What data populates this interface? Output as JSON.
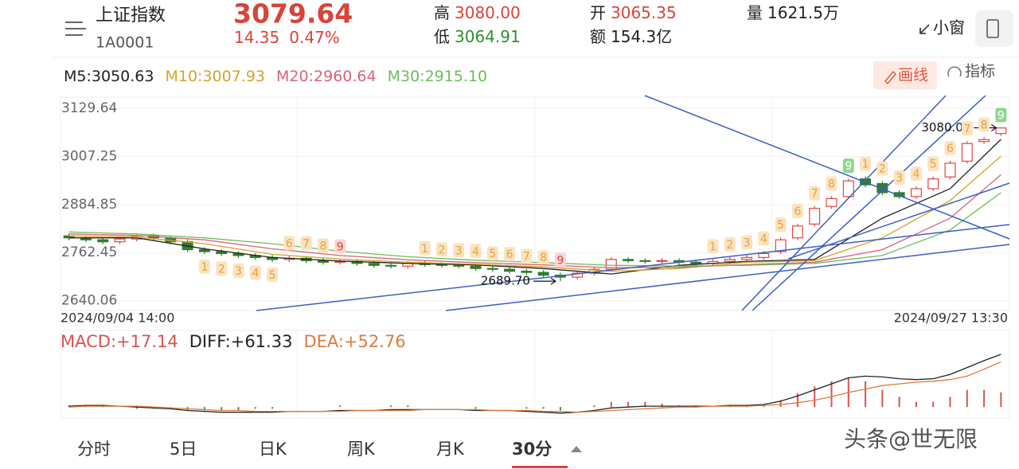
{
  "header": {
    "name": "上证指数",
    "code": "1A0001",
    "price": "3079.64",
    "change": "14.35",
    "change_pct": "0.47%",
    "stats": [
      {
        "label": "高",
        "value": "3080.00"
      },
      {
        "label": "低",
        "value": "3064.91"
      },
      {
        "label": "开",
        "value": "3065.35"
      },
      {
        "label": "额",
        "value": "154.3亿"
      },
      {
        "label": "量",
        "value": "1621.5万"
      }
    ]
  },
  "toolbar": {
    "small_window": "小窗",
    "draw": "画线",
    "indicator": "指标"
  },
  "tabs": [
    "分时",
    "5日",
    "日K",
    "周K",
    "月K",
    "30分"
  ],
  "active_tab": 5,
  "watermark": "头条@世无限",
  "chart_data": [
    {
      "type": "candlestick",
      "up_color": "#e0463e",
      "down_color": "#2f7d32",
      "categories": [
        "2024/09/04 14:00",
        null,
        null,
        null,
        null,
        null,
        null,
        null,
        null,
        null,
        null,
        null,
        null,
        null,
        null,
        null,
        null,
        null,
        null,
        null,
        null,
        null,
        null,
        null,
        null,
        null,
        null,
        null,
        null,
        null,
        null,
        null,
        null,
        null,
        null,
        null,
        null,
        null,
        null,
        null,
        null,
        null,
        null,
        null,
        null,
        null,
        null,
        null,
        null,
        null,
        null,
        null,
        null,
        null,
        null,
        "2024/09/27 13:30"
      ],
      "open": [
        2805,
        2800,
        2795,
        2790,
        2797,
        2805,
        2800,
        2790,
        2770,
        2765,
        2760,
        2755,
        2750,
        2745,
        2748,
        2742,
        2738,
        2740,
        2735,
        2730,
        2728,
        2735,
        2732,
        2730,
        2728,
        2722,
        2720,
        2715,
        2712,
        2705,
        2700,
        2710,
        2720,
        2745,
        2742,
        2740,
        2742,
        2738,
        2735,
        2740,
        2745,
        2750,
        2765,
        2800,
        2835,
        2880,
        2905,
        2950,
        2938,
        2915,
        2905,
        2925,
        2955,
        2995,
        3045,
        3065.35
      ],
      "high": [
        2811,
        2806,
        2801,
        2803,
        2811,
        2811,
        2806,
        2796,
        2776,
        2771,
        2766,
        2761,
        2756,
        2754,
        2754,
        2748,
        2746,
        2746,
        2741,
        2736,
        2741,
        2741,
        2738,
        2736,
        2734,
        2728,
        2726,
        2721,
        2718,
        2711,
        2716,
        2726,
        2751,
        2751,
        2748,
        2748,
        2748,
        2744,
        2746,
        2751,
        2756,
        2766,
        2801,
        2836,
        2881,
        2906,
        2951,
        2956,
        2944,
        2921,
        2931,
        2956,
        2996,
        3046,
        3056,
        3080
      ],
      "low": [
        2794,
        2789,
        2784,
        2784,
        2791,
        2794,
        2784,
        2764,
        2759,
        2754,
        2749,
        2744,
        2739,
        2739,
        2736,
        2732,
        2732,
        2729,
        2724,
        2722,
        2722,
        2726,
        2724,
        2722,
        2716,
        2714,
        2709,
        2706,
        2699,
        2689.7,
        2694,
        2704,
        2714,
        2736,
        2734,
        2734,
        2732,
        2729,
        2729,
        2734,
        2739,
        2744,
        2759,
        2794,
        2829,
        2874,
        2899,
        2929,
        2909,
        2899,
        2899,
        2919,
        2949,
        2989,
        3039,
        3059.35
      ],
      "close": [
        2800,
        2795,
        2790,
        2797,
        2805,
        2800,
        2790,
        2770,
        2765,
        2760,
        2755,
        2750,
        2745,
        2748,
        2742,
        2738,
        2740,
        2735,
        2730,
        2728,
        2735,
        2732,
        2730,
        2728,
        2722,
        2720,
        2715,
        2712,
        2705,
        2700,
        2710,
        2720,
        2745,
        2742,
        2740,
        2742,
        2738,
        2735,
        2740,
        2745,
        2750,
        2760,
        2795,
        2830,
        2875,
        2900,
        2945,
        2935,
        2915,
        2905,
        2925,
        2950,
        2990,
        3040,
        3050,
        3079.64
      ],
      "ylim": [
        2615,
        3158
      ],
      "yticks": [
        3129.64,
        3007.25,
        2884.85,
        2762.45,
        2640.06
      ],
      "grid": true,
      "series": [
        {
          "name": "M5:",
          "color": "#222222",
          "current": 3050.63,
          "x": [
            0,
            4,
            8,
            12,
            16,
            20,
            24,
            28,
            32,
            36,
            40,
            44,
            48,
            52,
            55
          ],
          "values": [
            2800,
            2800,
            2772,
            2750,
            2741,
            2735,
            2731,
            2722,
            2708,
            2730,
            2740,
            2745,
            2850,
            2925,
            3050.63
          ]
        },
        {
          "name": "M10:",
          "color": "#d4a32a",
          "current": 3007.93,
          "x": [
            0,
            4,
            8,
            12,
            16,
            20,
            24,
            28,
            32,
            36,
            40,
            44,
            48,
            52,
            55
          ],
          "values": [
            2805,
            2802,
            2785,
            2758,
            2746,
            2738,
            2733,
            2726,
            2715,
            2722,
            2738,
            2742,
            2800,
            2895,
            3007.93
          ]
        },
        {
          "name": "M20:",
          "color": "#d9637a",
          "current": 2960.64,
          "x": [
            0,
            4,
            8,
            12,
            16,
            20,
            24,
            28,
            32,
            36,
            40,
            44,
            48,
            52,
            55
          ],
          "values": [
            2810,
            2806,
            2795,
            2772,
            2755,
            2744,
            2737,
            2731,
            2724,
            2725,
            2732,
            2738,
            2770,
            2850,
            2960.64
          ]
        },
        {
          "name": "M30:",
          "color": "#6dbd5a",
          "current": 2915.1,
          "current_label": "2915.10",
          "x": [
            0,
            4,
            8,
            12,
            16,
            20,
            24,
            28,
            32,
            36,
            40,
            44,
            48,
            52,
            55
          ],
          "values": [
            2815,
            2810,
            2800,
            2785,
            2766,
            2752,
            2743,
            2737,
            2730,
            2728,
            2730,
            2735,
            2755,
            2820,
            2915.1
          ]
        }
      ],
      "annotations": [
        {
          "label": "3080.00",
          "value": 3080,
          "of": "high"
        },
        {
          "label": "2689.70",
          "value": 2689.7,
          "of": "low"
        }
      ],
      "sequences": [
        {
          "start": 8,
          "side": "below",
          "labels": [
            "1",
            "2",
            "3",
            "4",
            "5"
          ],
          "colors": [
            "#e8a23a",
            "#e8a23a",
            "#e8a23a",
            "#e8a23a",
            "#e8a23a"
          ]
        },
        {
          "start": 13,
          "side": "above",
          "labels": [
            "6",
            "7",
            "8",
            "9"
          ],
          "colors": [
            "#e8a23a",
            "#e8a23a",
            "#e8a23a",
            "#e0463e"
          ]
        },
        {
          "start": 21,
          "side": "above",
          "labels": [
            "1",
            "2",
            "3",
            "4",
            "5",
            "6",
            "7",
            "8",
            "9"
          ],
          "colors": [
            "#e8a23a",
            "#e8a23a",
            "#e8a23a",
            "#e8a23a",
            "#e8a23a",
            "#e8a23a",
            "#e8a23a",
            "#e8a23a",
            "#e0463e"
          ]
        },
        {
          "start": 38,
          "side": "above",
          "labels": [
            "1",
            "2",
            "3",
            "4",
            "5",
            "6",
            "7",
            "8",
            "9"
          ],
          "colors": [
            "#e8a23a",
            "#e8a23a",
            "#e8a23a",
            "#e8a23a",
            "#e8a23a",
            "#e8a23a",
            "#e8a23a",
            "#e8a23a",
            "#4caf50"
          ]
        },
        {
          "start": 47,
          "side": "above",
          "labels": [
            "1",
            "2",
            "3",
            "4",
            "5",
            "6",
            "7",
            "8",
            "9"
          ],
          "colors": [
            "#e8a23a",
            "#e8a23a",
            "#e8a23a",
            "#e8a23a",
            "#e8a23a",
            "#e8a23a",
            "#e8a23a",
            "#e8a23a",
            "#4caf50"
          ]
        }
      ]
    },
    {
      "type": "macd",
      "ylim": [
        -10,
        66
      ],
      "series": [
        {
          "name": "MACD:",
          "current": 17.14,
          "current_label": "+17.14",
          "color": "#d9534f",
          "down_color": "#3a9a3a",
          "kind": "bar",
          "values": [
            2,
            2,
            2,
            0,
            -2,
            -2,
            -2,
            -4,
            -4,
            -4,
            -4,
            -2,
            -2,
            0,
            0,
            0,
            2,
            0,
            0,
            2,
            2,
            0,
            0,
            0,
            -2,
            0,
            0,
            -2,
            -2,
            -4,
            0,
            2,
            6,
            6,
            6,
            4,
            2,
            2,
            0,
            2,
            2,
            2,
            8,
            16,
            24,
            30,
            34,
            30,
            20,
            12,
            6,
            6,
            12,
            20,
            20,
            17.14
          ]
        },
        {
          "name": "DIFF:",
          "current": 61.33,
          "current_label": "+61.33",
          "color": "#222222",
          "kind": "line",
          "values": [
            1,
            2,
            2,
            1,
            0,
            -1,
            -2,
            -4,
            -5,
            -6,
            -6,
            -6,
            -6,
            -5,
            -5,
            -5,
            -4,
            -4,
            -4,
            -3,
            -3,
            -3,
            -3,
            -3,
            -4,
            -4,
            -4,
            -5,
            -6,
            -7,
            -6,
            -4,
            -1,
            0,
            1,
            1,
            1,
            1,
            1,
            2,
            2,
            3,
            7,
            13,
            20,
            27,
            34,
            36,
            35,
            33,
            32,
            33,
            38,
            46,
            54,
            61.33
          ]
        },
        {
          "name": "DEA:",
          "current": 52.76,
          "current_label": "+52.76",
          "color": "#e07a3a",
          "kind": "line",
          "values": [
            0,
            1,
            1,
            1,
            1,
            0,
            -1,
            -2,
            -3,
            -4,
            -4,
            -5,
            -5,
            -5,
            -5,
            -5,
            -5,
            -4,
            -4,
            -4,
            -4,
            -3,
            -3,
            -3,
            -3,
            -4,
            -4,
            -4,
            -5,
            -5,
            -6,
            -5,
            -4,
            -3,
            -2,
            -1,
            0,
            0,
            1,
            1,
            1,
            2,
            3,
            5,
            8,
            12,
            17,
            21,
            25,
            27,
            29,
            30,
            32,
            36,
            44,
            52.76
          ]
        }
      ]
    }
  ]
}
